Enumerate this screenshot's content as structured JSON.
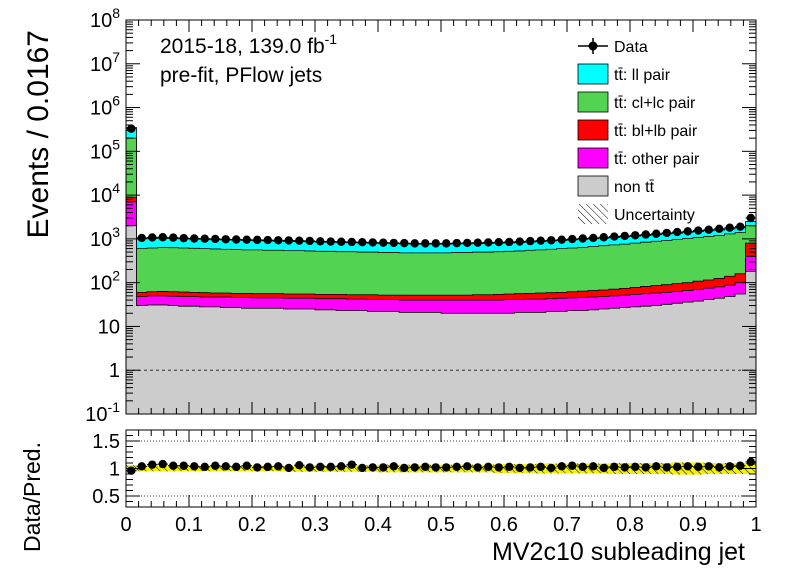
{
  "chart_data": [
    {
      "type": "bar",
      "stacked": true,
      "log_y": true,
      "ylabel": "Events / 0.0167",
      "xlim": [
        0,
        1
      ],
      "ylim": [
        0.1,
        100000000
      ],
      "y_ticks": [
        {
          "value": 0.1,
          "mantissa": "10",
          "exp": "-1"
        },
        {
          "value": 1,
          "mantissa": "1",
          "exp": ""
        },
        {
          "value": 10,
          "mantissa": "10",
          "exp": ""
        },
        {
          "value": 100,
          "mantissa": "10",
          "exp": "2"
        },
        {
          "value": 1000,
          "mantissa": "10",
          "exp": "3"
        },
        {
          "value": 10000,
          "mantissa": "10",
          "exp": "4"
        },
        {
          "value": 100000,
          "mantissa": "10",
          "exp": "5"
        },
        {
          "value": 1000000,
          "mantissa": "10",
          "exp": "6"
        },
        {
          "value": 10000000,
          "mantissa": "10",
          "exp": "7"
        },
        {
          "value": 100000000,
          "mantissa": "10",
          "exp": "8"
        }
      ],
      "annotations": {
        "line1_text": "2015-18, 139.0 fb",
        "line1_sup": "-1",
        "line2": "pre-fit, PFlow jets"
      },
      "reference_line_y": 1,
      "legend": {
        "placement": "top-right",
        "items": [
          {
            "key": "data",
            "label": "Data",
            "style": "marker"
          },
          {
            "key": "ll",
            "label": "tt̄: ll pair",
            "style": "fill",
            "color": "#00ffff"
          },
          {
            "key": "cl",
            "label": "tt̄: cl+lc pair",
            "style": "fill",
            "color": "#52d452"
          },
          {
            "key": "bl",
            "label": "tt̄: bl+lb pair",
            "style": "fill",
            "color": "#ff0000"
          },
          {
            "key": "other",
            "label": "tt̄: other pair",
            "style": "fill",
            "color": "#ff00ff"
          },
          {
            "key": "nontt",
            "label": "non tt̄",
            "style": "fill",
            "color": "#cccccc"
          },
          {
            "key": "unc",
            "label": "Uncertainty",
            "style": "hatch"
          }
        ]
      },
      "bins": {
        "count": 60,
        "x_first_center": 0.0083,
        "bin_width": 0.0167,
        "series_tops": {
          "nontt": [
            2000,
            30,
            31,
            31,
            30,
            29,
            29,
            28,
            28,
            27,
            27,
            26,
            26,
            26,
            26,
            25,
            25,
            25,
            24,
            24,
            23,
            23,
            23,
            22,
            22,
            22,
            21,
            21,
            21,
            21,
            20,
            20,
            20,
            20,
            20,
            20,
            20,
            21,
            21,
            21,
            22,
            22,
            23,
            23,
            24,
            25,
            26,
            27,
            28,
            29,
            30,
            32,
            34,
            36,
            38,
            41,
            44,
            48,
            55,
            180
          ],
          "other": [
            7000,
            48,
            50,
            50,
            49,
            48,
            48,
            47,
            47,
            47,
            46,
            46,
            45,
            45,
            45,
            44,
            44,
            44,
            43,
            43,
            43,
            42,
            42,
            41,
            41,
            41,
            40,
            40,
            40,
            40,
            40,
            40,
            40,
            40,
            40,
            40,
            41,
            41,
            42,
            42,
            43,
            44,
            45,
            46,
            47,
            48,
            50,
            52,
            54,
            56,
            58,
            60,
            63,
            66,
            70,
            75,
            80,
            88,
            100,
            400
          ],
          "bl": [
            9000,
            60,
            62,
            63,
            62,
            61,
            60,
            59,
            58,
            58,
            57,
            57,
            56,
            56,
            56,
            55,
            55,
            55,
            54,
            54,
            54,
            53,
            53,
            53,
            52,
            52,
            52,
            52,
            52,
            52,
            52,
            52,
            52,
            53,
            53,
            54,
            55,
            56,
            57,
            58,
            59,
            60,
            62,
            64,
            66,
            68,
            71,
            74,
            78,
            82,
            86,
            90,
            95,
            100,
            108,
            115,
            125,
            140,
            160,
            800
          ],
          "cl": [
            200000,
            600,
            620,
            640,
            630,
            620,
            610,
            600,
            590,
            580,
            570,
            560,
            560,
            550,
            550,
            540,
            540,
            530,
            520,
            520,
            510,
            510,
            500,
            500,
            490,
            490,
            480,
            480,
            480,
            480,
            480,
            490,
            490,
            500,
            500,
            510,
            520,
            530,
            550,
            560,
            580,
            600,
            620,
            640,
            670,
            700,
            730,
            760,
            800,
            840,
            880,
            920,
            970,
            1020,
            1080,
            1140,
            1200,
            1300,
            1400,
            2000
          ],
          "ll": [
            350000,
            1000,
            1020,
            1030,
            1020,
            1000,
            990,
            980,
            960,
            950,
            940,
            920,
            910,
            900,
            890,
            880,
            870,
            860,
            850,
            840,
            830,
            820,
            810,
            800,
            790,
            780,
            770,
            760,
            760,
            760,
            760,
            770,
            770,
            780,
            790,
            800,
            810,
            830,
            850,
            870,
            900,
            920,
            950,
            980,
            1010,
            1040,
            1080,
            1120,
            1160,
            1200,
            1250,
            1300,
            1360,
            1420,
            1480,
            1540,
            1600,
            1700,
            1800,
            2500
          ]
        },
        "data": [
          330000,
          1050,
          1080,
          1090,
          1070,
          1040,
          1020,
          1010,
          1000,
          980,
          970,
          960,
          950,
          940,
          930,
          920,
          910,
          900,
          880,
          870,
          860,
          850,
          840,
          830,
          820,
          810,
          800,
          790,
          790,
          790,
          790,
          800,
          810,
          820,
          830,
          840,
          850,
          870,
          890,
          910,
          930,
          960,
          990,
          1020,
          1050,
          1090,
          1130,
          1170,
          1210,
          1260,
          1310,
          1370,
          1430,
          1490,
          1550,
          1620,
          1700,
          1800,
          1900,
          3000
        ]
      }
    },
    {
      "type": "scatter",
      "ylabel": "Data/Pred.",
      "xlabel": "MV2c10 subleading jet",
      "xlim": [
        0,
        1
      ],
      "ylim": [
        0.3,
        1.7
      ],
      "y_ticks": [
        0.5,
        1,
        1.5
      ],
      "x_ticks": [
        0,
        0.1,
        0.2,
        0.3,
        0.4,
        0.5,
        0.6,
        0.7,
        0.8,
        0.9,
        1
      ],
      "gridlines_y": [
        0.5,
        1,
        1.5
      ],
      "ratio": [
        0.96,
        1.04,
        1.07,
        1.08,
        1.05,
        1.05,
        1.04,
        1.03,
        1.05,
        1.04,
        1.03,
        1.05,
        1.02,
        1.03,
        1.04,
        1.01,
        1.06,
        1.02,
        1.03,
        1.03,
        1.04,
        1.07,
        1.01,
        1.02,
        1.02,
        1.04,
        1.01,
        1.02,
        1.03,
        1.02,
        1.02,
        1.03,
        1.04,
        1.02,
        1.03,
        1.02,
        1.03,
        1.01,
        1.02,
        1.03,
        1.01,
        1.04,
        1.05,
        1.03,
        1.04,
        1.01,
        1.03,
        1.02,
        1.03,
        1.02,
        1.04,
        1.02,
        1.03,
        1.04,
        1.03,
        1.04,
        1.02,
        1.04,
        1.05,
        1.12
      ],
      "uncertainty": [
        0.06,
        0.05,
        0.05,
        0.05,
        0.05,
        0.05,
        0.05,
        0.05,
        0.05,
        0.05,
        0.05,
        0.05,
        0.05,
        0.05,
        0.05,
        0.05,
        0.06,
        0.06,
        0.06,
        0.06,
        0.06,
        0.06,
        0.06,
        0.06,
        0.07,
        0.07,
        0.07,
        0.07,
        0.07,
        0.07,
        0.07,
        0.07,
        0.07,
        0.07,
        0.07,
        0.08,
        0.08,
        0.08,
        0.08,
        0.09,
        0.09,
        0.09,
        0.09,
        0.09,
        0.09,
        0.09,
        0.1,
        0.1,
        0.1,
        0.1,
        0.1,
        0.1,
        0.11,
        0.11,
        0.11,
        0.1,
        0.1,
        0.1,
        0.1,
        0.1
      ]
    }
  ]
}
